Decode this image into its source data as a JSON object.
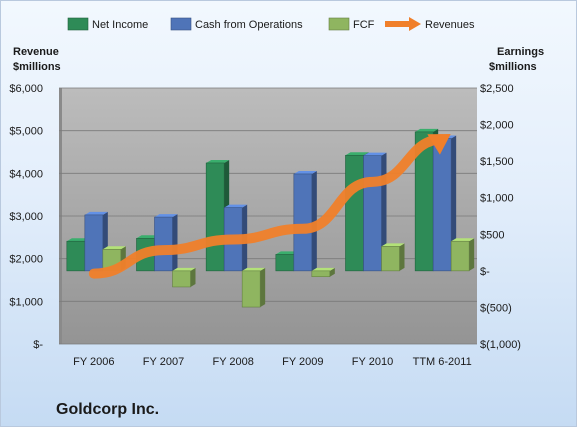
{
  "chart_data": {
    "type": "bar",
    "title": "Goldcorp Inc.",
    "categories": [
      "FY 2006",
      "FY 2007",
      "FY 2008",
      "FY 2009",
      "FY 2010",
      "TTM 6-2011"
    ],
    "left_axis": {
      "label_line1": "Revenue",
      "label_line2": "$millions",
      "ylim": [
        0,
        6000
      ],
      "ticks": [
        0,
        1000,
        2000,
        3000,
        4000,
        5000,
        6000
      ],
      "tick_labels": [
        "$-",
        "$1,000",
        "$2,000",
        "$3,000",
        "$4,000",
        "$5,000",
        "$6,000"
      ]
    },
    "right_axis": {
      "label_line1": "Earnings",
      "label_line2": "$millions",
      "ylim": [
        -1000,
        2500
      ],
      "ticks": [
        -1000,
        -500,
        0,
        500,
        1000,
        1500,
        2000,
        2500
      ],
      "tick_labels": [
        "$(1,000)",
        "$(500)",
        "$-",
        "$500",
        "$1,000",
        "$1,500",
        "$2,000",
        "$2,500"
      ]
    },
    "series": [
      {
        "name": "Net Income",
        "axis": "right",
        "kind": "bar",
        "color": "#2e8b57",
        "values": [
          405,
          445,
          1475,
          225,
          1580,
          1900
        ]
      },
      {
        "name": "Cash from Operations",
        "axis": "right",
        "kind": "bar",
        "color": "#4f74b8",
        "values": [
          765,
          735,
          865,
          1325,
          1575,
          1810
        ]
      },
      {
        "name": "FCF",
        "axis": "right",
        "kind": "bar",
        "color": "#8fb560",
        "values": [
          295,
          -220,
          -495,
          -80,
          335,
          405
        ]
      },
      {
        "name": "Revenues",
        "axis": "left",
        "kind": "line",
        "color": "#f07f2a",
        "values": [
          1650,
          2200,
          2450,
          2700,
          3800,
          4800
        ]
      }
    ],
    "legend_position": "top",
    "grid": true
  }
}
